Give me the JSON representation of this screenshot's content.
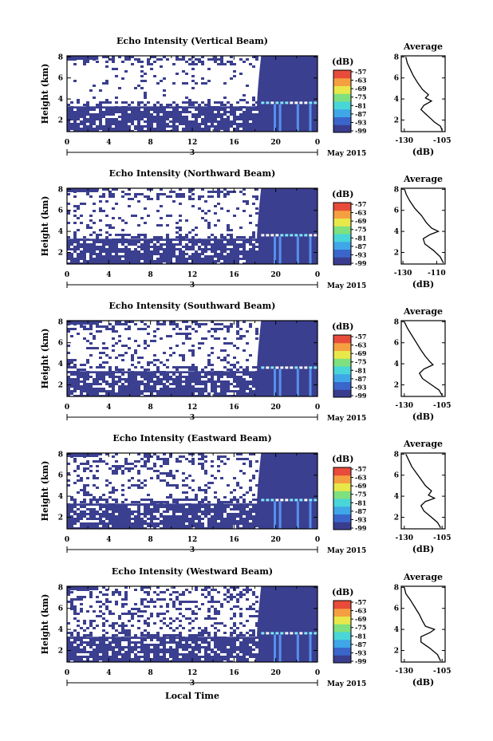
{
  "chart_data": [
    {
      "type": "heatmap",
      "title": "Echo Intensity (Vertical Beam)",
      "ylabel": "Height (km)",
      "x_ticks": [
        "0",
        "4",
        "8",
        "12",
        "16",
        "20",
        "0"
      ],
      "x_sublabel": "3",
      "date_label": "May 2015",
      "y_ticks": [
        "2",
        "4",
        "6",
        "8"
      ],
      "ylim": [
        0.9,
        8.1
      ],
      "colorbar": {
        "label": "(dB)",
        "ticks": [
          "-57",
          "-63",
          "-69",
          "-75",
          "-81",
          "-87",
          "-93",
          "-99"
        ]
      },
      "average": {
        "title": "Average",
        "xlabel": "(dB)",
        "xticks": [
          "-130",
          "-105"
        ],
        "xlim": [
          -132,
          -103
        ],
        "yticks": [
          "2",
          "4",
          "6",
          "8"
        ],
        "profile": [
          [
            -105,
            1.0
          ],
          [
            -106,
            1.4
          ],
          [
            -110,
            1.8
          ],
          [
            -113,
            2.2
          ],
          [
            -116,
            2.6
          ],
          [
            -119,
            3.0
          ],
          [
            -117,
            3.4
          ],
          [
            -112,
            3.8
          ],
          [
            -116,
            4.1
          ],
          [
            -114,
            4.4
          ],
          [
            -118,
            4.9
          ],
          [
            -121,
            5.5
          ],
          [
            -124,
            6.2
          ],
          [
            -126,
            6.8
          ],
          [
            -128,
            7.4
          ],
          [
            -129,
            8.0
          ]
        ]
      }
    },
    {
      "type": "heatmap",
      "title": "Echo Intensity (Northward Beam)",
      "ylabel": "Height (km)",
      "x_ticks": [
        "0",
        "4",
        "8",
        "12",
        "16",
        "20",
        "0"
      ],
      "x_sublabel": "3",
      "date_label": "May 2015",
      "y_ticks": [
        "2",
        "4",
        "6",
        "8"
      ],
      "ylim": [
        0.9,
        8.1
      ],
      "colorbar": {
        "label": "(dB)",
        "ticks": [
          "-57",
          "-63",
          "-69",
          "-75",
          "-81",
          "-87",
          "-93",
          "-99"
        ]
      },
      "average": {
        "title": "Average",
        "xlabel": "(dB)",
        "xticks": [
          "-130",
          "-110"
        ],
        "xlim": [
          -131,
          -105
        ],
        "yticks": [
          "2",
          "4",
          "6",
          "8"
        ],
        "profile": [
          [
            -106,
            1.0
          ],
          [
            -108,
            1.6
          ],
          [
            -112,
            2.2
          ],
          [
            -117,
            2.8
          ],
          [
            -118,
            3.3
          ],
          [
            -114,
            3.7
          ],
          [
            -109,
            4.0
          ],
          [
            -113,
            4.3
          ],
          [
            -116,
            4.8
          ],
          [
            -119,
            5.5
          ],
          [
            -123,
            6.2
          ],
          [
            -126,
            6.9
          ],
          [
            -128,
            7.5
          ],
          [
            -129,
            8.0
          ]
        ]
      }
    },
    {
      "type": "heatmap",
      "title": "Echo Intensity (Southward Beam)",
      "ylabel": "Height (km)",
      "x_ticks": [
        "0",
        "4",
        "8",
        "12",
        "16",
        "20",
        "0"
      ],
      "x_sublabel": "3",
      "date_label": "May 2015",
      "y_ticks": [
        "2",
        "4",
        "6",
        "8"
      ],
      "ylim": [
        0.9,
        8.1
      ],
      "colorbar": {
        "label": "(dB)",
        "ticks": [
          "-57",
          "-63",
          "-69",
          "-75",
          "-81",
          "-87",
          "-93",
          "-99"
        ]
      },
      "average": {
        "title": "Average",
        "xlabel": "(dB)",
        "xticks": [
          "-130",
          "-105"
        ],
        "xlim": [
          -132,
          -103
        ],
        "yticks": [
          "2",
          "4",
          "6",
          "8"
        ],
        "profile": [
          [
            -105,
            1.0
          ],
          [
            -107,
            1.5
          ],
          [
            -112,
            2.0
          ],
          [
            -118,
            2.6
          ],
          [
            -120,
            3.1
          ],
          [
            -117,
            3.5
          ],
          [
            -111,
            3.9
          ],
          [
            -113,
            4.2
          ],
          [
            -116,
            4.7
          ],
          [
            -119,
            5.3
          ],
          [
            -122,
            6.0
          ],
          [
            -125,
            6.7
          ],
          [
            -128,
            7.4
          ],
          [
            -130,
            8.0
          ]
        ]
      }
    },
    {
      "type": "heatmap",
      "title": "Echo Intensity (Eastward Beam)",
      "ylabel": "Height (km)",
      "x_ticks": [
        "0",
        "4",
        "8",
        "12",
        "16",
        "20",
        "0"
      ],
      "x_sublabel": "3",
      "date_label": "May 2015",
      "y_ticks": [
        "2",
        "4",
        "6",
        "8"
      ],
      "ylim": [
        0.9,
        8.1
      ],
      "colorbar": {
        "label": "(dB)",
        "ticks": [
          "-57",
          "-63",
          "-69",
          "-75",
          "-81",
          "-87",
          "-93",
          "-99"
        ]
      },
      "average": {
        "title": "Average",
        "xlabel": "(dB)",
        "xticks": [
          "-130",
          "-105"
        ],
        "xlim": [
          -132,
          -103
        ],
        "yticks": [
          "2",
          "4",
          "6",
          "8"
        ],
        "profile": [
          [
            -106,
            1.0
          ],
          [
            -108,
            1.5
          ],
          [
            -112,
            2.0
          ],
          [
            -117,
            2.6
          ],
          [
            -119,
            3.1
          ],
          [
            -116,
            3.5
          ],
          [
            -110,
            3.8
          ],
          [
            -114,
            4.1
          ],
          [
            -112,
            4.5
          ],
          [
            -116,
            5.0
          ],
          [
            -119,
            5.6
          ],
          [
            -122,
            6.2
          ],
          [
            -125,
            6.8
          ],
          [
            -127,
            7.4
          ],
          [
            -129,
            8.0
          ]
        ]
      }
    },
    {
      "type": "heatmap",
      "title": "Echo Intensity (Westward Beam)",
      "ylabel": "Height (km)",
      "x_ticks": [
        "0",
        "4",
        "8",
        "12",
        "16",
        "20",
        "0"
      ],
      "x_sublabel": "3",
      "date_label": "May 2015",
      "xlabel": "Local Time",
      "y_ticks": [
        "2",
        "4",
        "6",
        "8"
      ],
      "ylim": [
        0.9,
        8.1
      ],
      "colorbar": {
        "label": "(dB)",
        "ticks": [
          "-57",
          "-63",
          "-69",
          "-75",
          "-81",
          "-87",
          "-93",
          "-99"
        ]
      },
      "average": {
        "title": "Average",
        "xlabel": "(dB)",
        "xticks": [
          "-130",
          "-105"
        ],
        "xlim": [
          -132,
          -103
        ],
        "yticks": [
          "2",
          "4",
          "6",
          "8"
        ],
        "profile": [
          [
            -106,
            1.0
          ],
          [
            -108,
            1.6
          ],
          [
            -113,
            2.2
          ],
          [
            -119,
            2.8
          ],
          [
            -119,
            3.3
          ],
          [
            -113,
            3.7
          ],
          [
            -110,
            4.0
          ],
          [
            -116,
            4.3
          ],
          [
            -118,
            4.8
          ],
          [
            -120,
            5.4
          ],
          [
            -123,
            6.1
          ],
          [
            -126,
            6.8
          ],
          [
            -129,
            7.4
          ],
          [
            -130,
            8.0
          ]
        ]
      }
    }
  ],
  "colors": {
    "navy": "#3b3f8f",
    "lightblue": "#5aa0ff",
    "cyan": "#7fe8ff",
    "white": "#ffffff",
    "ramp": [
      "#3a3d8e",
      "#3a66cc",
      "#3fa6e8",
      "#48d6d8",
      "#7fe07f",
      "#e8e84a",
      "#f5a040",
      "#e84b3a"
    ]
  }
}
